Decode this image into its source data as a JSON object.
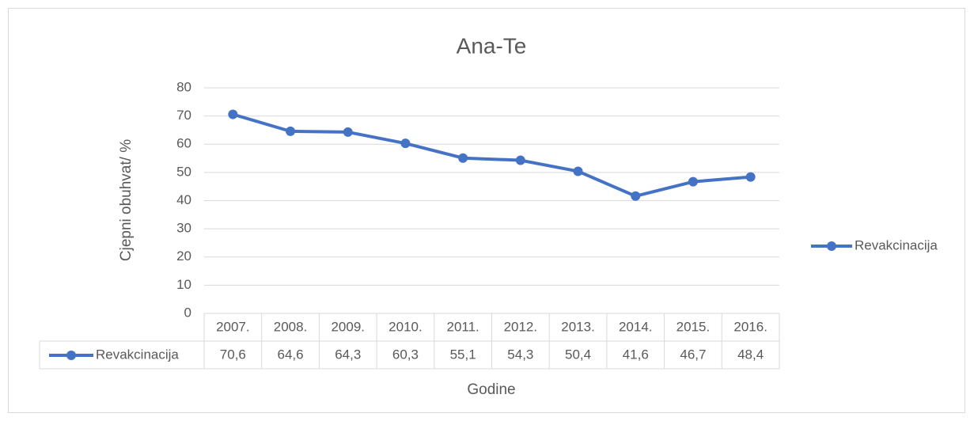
{
  "chart_data": {
    "type": "line",
    "title": "Ana-Te",
    "x_label": "Godine",
    "y_label": "Cjepni obuhvat/ %",
    "categories": [
      "2007.",
      "2008.",
      "2009.",
      "2010.",
      "2011.",
      "2012.",
      "2013.",
      "2014.",
      "2015.",
      "2016."
    ],
    "series": [
      {
        "name": "Revakcinacija",
        "color": "#4472c4",
        "values": [
          70.6,
          64.6,
          64.3,
          60.3,
          55.1,
          54.3,
          50.4,
          41.6,
          46.7,
          48.4
        ],
        "value_labels": [
          "70,6",
          "64,6",
          "64,3",
          "60,3",
          "55,1",
          "54,3",
          "50,4",
          "41,6",
          "46,7",
          "48,4"
        ]
      }
    ],
    "ylim": [
      0,
      80
    ],
    "yticks": [
      0,
      10,
      20,
      30,
      40,
      50,
      60,
      70,
      80
    ],
    "grid": true,
    "legend": "right",
    "data_table": true
  }
}
